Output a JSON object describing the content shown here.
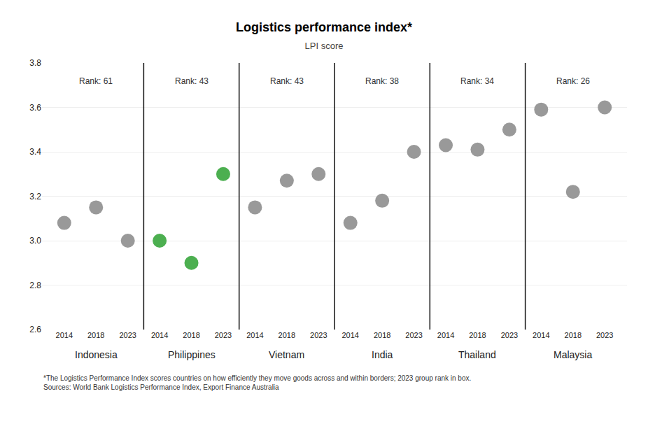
{
  "chart_data": {
    "type": "scatter",
    "title": "Logistics performance index*",
    "subtitle": "LPI score",
    "footnote": "*The Logistics Performance Index scores countries on how efficiently they move goods across and within borders; 2023 group rank in box.\nSources: World Bank Logistics Performance Index, Export Finance Australia",
    "categories": [
      "2014",
      "2018",
      "2023"
    ],
    "series": [
      {
        "name": "Indonesia",
        "color": "#999999",
        "values": [
          3.08,
          3.15,
          3.0
        ],
        "annotation": "Rank: 61"
      },
      {
        "name": "Philippines",
        "color": "#4CAF50",
        "values": [
          3.0,
          2.9,
          3.3
        ],
        "annotation": "Rank: 43"
      },
      {
        "name": "Vietnam",
        "color": "#999999",
        "values": [
          3.15,
          3.27,
          3.3
        ],
        "annotation": "Rank: 43"
      },
      {
        "name": "India",
        "color": "#999999",
        "values": [
          3.08,
          3.18,
          3.4
        ],
        "annotation": "Rank: 38"
      },
      {
        "name": "Thailand",
        "color": "#999999",
        "values": [
          3.43,
          3.41,
          3.5
        ],
        "annotation": "Rank: 34"
      },
      {
        "name": "Malaysia",
        "color": "#999999",
        "values": [
          3.59,
          3.22,
          3.6
        ],
        "annotation": "Rank: 26"
      }
    ],
    "ylim": [
      2.6,
      3.8
    ],
    "yticks": [
      2.6,
      2.8,
      {
        "value": 3.0,
        "label": "3.0"
      },
      3.2,
      3.4,
      3.6,
      3.8
    ],
    "grid": true
  }
}
